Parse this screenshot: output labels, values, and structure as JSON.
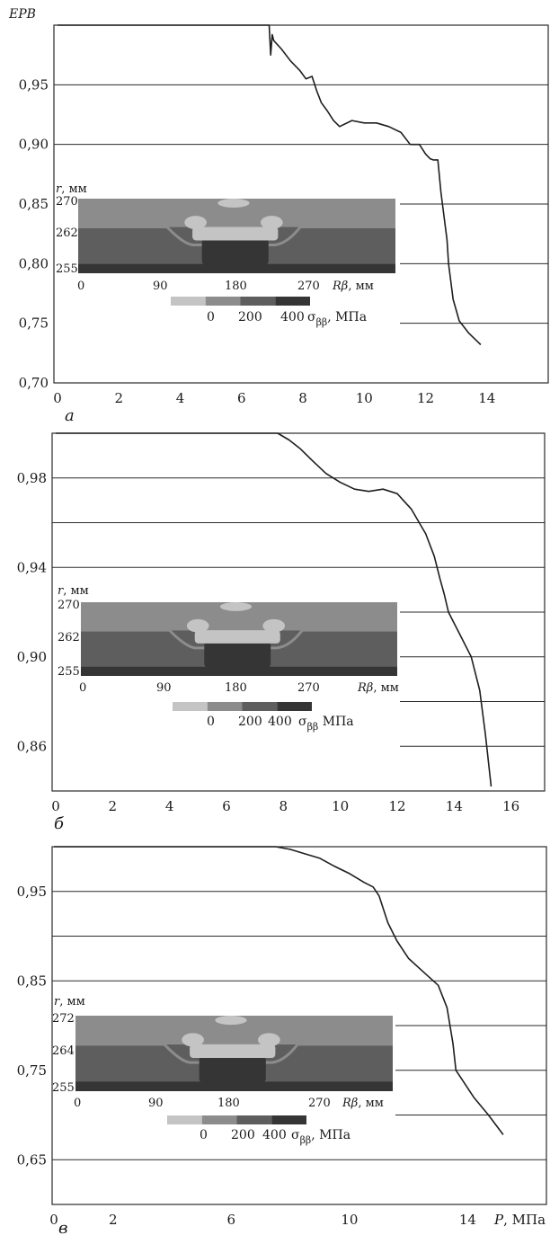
{
  "chart_data": [
    {
      "type": "line",
      "panel_label": "а",
      "ylabel": "EPB",
      "xlabel": "",
      "xlim": [
        0,
        16
      ],
      "ylim": [
        0.7,
        1.0
      ],
      "x_ticks": [
        "0",
        "2",
        "4",
        "6",
        "8",
        "10",
        "12",
        "14"
      ],
      "y_ticks": [
        "0,70",
        "0,75",
        "0,80",
        "0,85",
        "0,90",
        "0,95"
      ],
      "series": [
        {
          "x": [
            0,
            6.9,
            6.95,
            7.0,
            7.05,
            7.3,
            7.6,
            7.9,
            8.1,
            8.3,
            8.45,
            8.6,
            8.8,
            9.0,
            9.2,
            9.6,
            10.0,
            10.4,
            10.8,
            11.2,
            11.5,
            11.8,
            12.0,
            12.15,
            12.25,
            12.4,
            12.5,
            12.6,
            12.7,
            12.75,
            12.9,
            13.1,
            13.4,
            13.8
          ],
          "y": [
            1.0,
            1.0,
            0.975,
            0.992,
            0.987,
            0.98,
            0.97,
            0.962,
            0.955,
            0.957,
            0.945,
            0.935,
            0.928,
            0.92,
            0.915,
            0.92,
            0.918,
            0.918,
            0.915,
            0.91,
            0.9,
            0.9,
            0.892,
            0.888,
            0.887,
            0.887,
            0.86,
            0.84,
            0.82,
            0.8,
            0.77,
            0.752,
            0.742,
            0.732
          ]
        }
      ],
      "inset": {
        "r_label": "r, мм",
        "r_ticks": [
          "270",
          "262",
          "255"
        ],
        "x_ticks": [
          "0",
          "90",
          "180",
          "270"
        ],
        "x_label_sym": "Rβ",
        "x_label_unit": ", мм",
        "legend_ticks": [
          "0",
          "200",
          "400"
        ],
        "legend_sym": "σ",
        "legend_sub": "ββ",
        "legend_unit": ", МПа"
      }
    },
    {
      "type": "line",
      "panel_label": "б",
      "ylabel": "",
      "xlabel": "",
      "xlim": [
        0,
        18
      ],
      "ylim": [
        0.84,
        1.0
      ],
      "x_ticks": [
        "0",
        "2",
        "4",
        "6",
        "8",
        "10",
        "12",
        "14",
        "16"
      ],
      "y_ticks": [
        "0,86",
        "0,90",
        "0,94",
        "0,98"
      ],
      "series": [
        {
          "x": [
            0,
            7.8,
            8.2,
            8.6,
            9.0,
            9.5,
            10.0,
            10.5,
            11.0,
            11.5,
            12.0,
            12.5,
            13.0,
            13.3,
            13.5,
            13.65,
            13.8,
            14.2,
            14.6,
            14.9,
            15.1,
            15.3
          ],
          "y": [
            1.0,
            1.0,
            0.997,
            0.993,
            0.988,
            0.982,
            0.978,
            0.975,
            0.974,
            0.975,
            0.973,
            0.966,
            0.955,
            0.945,
            0.935,
            0.928,
            0.92,
            0.91,
            0.9,
            0.885,
            0.865,
            0.842
          ]
        }
      ],
      "inset": {
        "r_label": "r, мм",
        "r_ticks": [
          "270",
          "262",
          "255"
        ],
        "x_ticks": [
          "0",
          "90",
          "180",
          "270"
        ],
        "x_label_sym": "Rβ",
        "x_label_unit": ", мм",
        "legend_ticks": [
          "0",
          "200",
          "400"
        ],
        "legend_sym": "σ",
        "legend_sub": "ββ",
        "legend_unit": " МПа"
      }
    },
    {
      "type": "line",
      "panel_label": "в",
      "ylabel": "",
      "xlabel_sym": "P",
      "xlabel_unit": ", МПа",
      "xlim": [
        0,
        18
      ],
      "ylim": [
        0.6,
        1.0
      ],
      "x_ticks": [
        "0",
        "2",
        "6",
        "10",
        "14"
      ],
      "y_ticks": [
        "0,65",
        "0,75",
        "0,85",
        "0,95"
      ],
      "series": [
        {
          "x": [
            0,
            7.5,
            8.0,
            8.5,
            9.0,
            9.5,
            10.0,
            10.5,
            10.8,
            11.0,
            11.3,
            11.6,
            12.0,
            12.5,
            13.0,
            13.3,
            13.5,
            13.6,
            13.8,
            14.2,
            14.7,
            15.2
          ],
          "y": [
            1.0,
            1.0,
            0.997,
            0.992,
            0.987,
            0.978,
            0.97,
            0.96,
            0.955,
            0.945,
            0.915,
            0.895,
            0.875,
            0.86,
            0.845,
            0.82,
            0.78,
            0.75,
            0.74,
            0.72,
            0.7,
            0.678
          ]
        }
      ],
      "inset": {
        "r_label": "r, мм",
        "r_ticks": [
          "272",
          "264",
          "255"
        ],
        "x_ticks": [
          "0",
          "90",
          "180",
          "270"
        ],
        "x_label_sym": "Rβ",
        "x_label_unit": ", мм",
        "legend_ticks": [
          "0",
          "200",
          "400"
        ],
        "legend_sym": "σ",
        "legend_sub": "ββ",
        "legend_unit": ", МПа"
      }
    }
  ],
  "colors": {
    "line": "#1e1e1e",
    "grid": "#2a2a2a",
    "zone_light": "#c4c4c4",
    "zone_mid": "#8c8c8c",
    "zone_dark": "#5e5e5e",
    "zone_darkest": "#353535"
  }
}
